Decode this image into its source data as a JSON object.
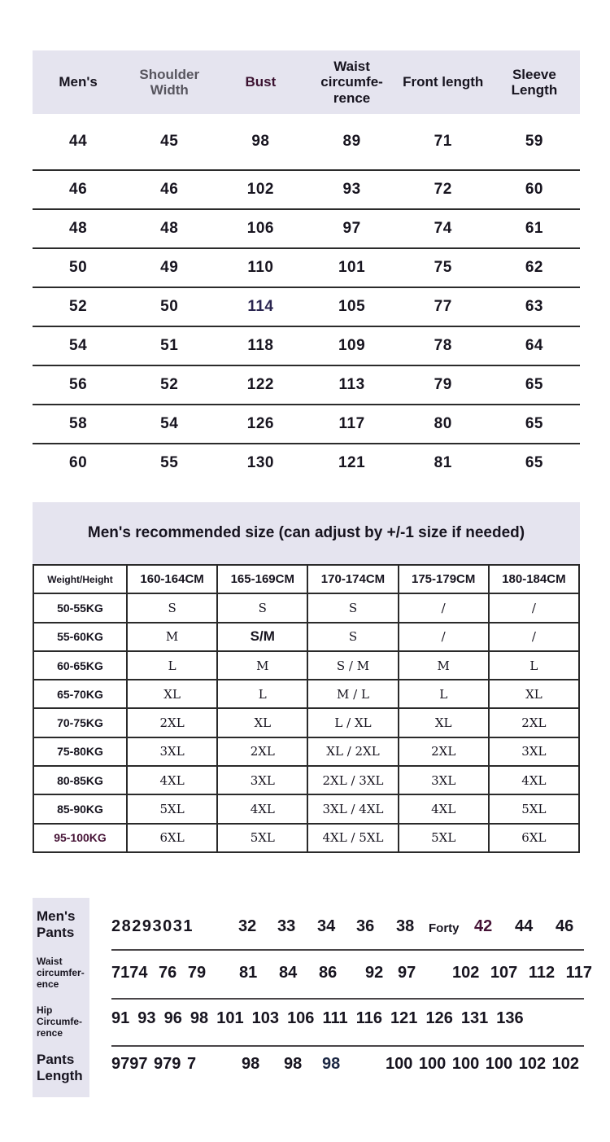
{
  "colors": {
    "band_lavender": "#e5e4ef",
    "text_dark": "#17141f",
    "header_gray": "#57555e",
    "header_plum": "#3b1230",
    "accent_navy": "#2a2550",
    "accent_maroon": "#451235",
    "table_border": "#2a2a2a"
  },
  "top_table": {
    "headers": [
      "Men's",
      "Shoulder\nWidth",
      "Bust",
      "Waist\ncircumfe-\nrence",
      "Front length",
      "Sleeve Length"
    ],
    "rows": [
      [
        "44",
        "45",
        "98",
        "89",
        "71",
        "59"
      ],
      [
        "46",
        "46",
        "102",
        "93",
        "72",
        "60"
      ],
      [
        "48",
        "48",
        "106",
        "97",
        "74",
        "61"
      ],
      [
        "50",
        "49",
        "110",
        "101",
        "75",
        "62"
      ],
      [
        "52",
        "50",
        "114",
        "105",
        "77",
        "63"
      ],
      [
        "54",
        "51",
        "118",
        "109",
        "78",
        "64"
      ],
      [
        "56",
        "52",
        "122",
        "113",
        "79",
        "65"
      ],
      [
        "58",
        "54",
        "126",
        "117",
        "80",
        "65"
      ],
      [
        "60",
        "55",
        "130",
        "121",
        "81",
        "65"
      ]
    ]
  },
  "recommend": {
    "title": "Men's recommended size (can adjust by +/-1 size if needed)",
    "headers": [
      "Weight/Height",
      "160-164CM",
      "165-169CM",
      "170-174CM",
      "175-179CM",
      "180-184CM"
    ],
    "rows": [
      [
        "50-55KG",
        "S",
        "S",
        "S",
        "/",
        "/"
      ],
      [
        "55-60KG",
        "M",
        "S/M",
        "S",
        "/",
        "/"
      ],
      [
        "60-65KG",
        "L",
        "M",
        "S / M",
        "M",
        "L"
      ],
      [
        "65-70KG",
        "XL",
        "L",
        "M / L",
        "L",
        "XL"
      ],
      [
        "70-75KG",
        "2XL",
        "XL",
        "L / XL",
        "XL",
        "2XL"
      ],
      [
        "75-80KG",
        "3XL",
        "2XL",
        "XL / 2XL",
        "2XL",
        "3XL"
      ],
      [
        "80-85KG",
        "4XL",
        "3XL",
        "2XL / 3XL",
        "3XL",
        "4XL"
      ],
      [
        "85-90KG",
        "5XL",
        "4XL",
        "3XL / 4XL",
        "4XL",
        "5XL"
      ],
      [
        "95-100KG",
        "6XL",
        "5XL",
        "4XL / 5XL",
        "5XL",
        "6XL"
      ]
    ]
  },
  "pants": {
    "rows": [
      {
        "label": "Men's\nPants",
        "tokens": [
          "28293031",
          "32",
          "33",
          "34",
          "36",
          "38",
          "Forty",
          "42",
          "44",
          "46"
        ]
      },
      {
        "label": "Waist\ncircumfer-\nence",
        "tokens": [
          "7174 76 79",
          "81",
          "84",
          "86",
          "92",
          "97",
          "102 107 112 117"
        ]
      },
      {
        "label": "Hip\nCircumfe-\nrence",
        "tokens": [
          "91 93 96 98 101 103 106 111 116 121 126 131 136"
        ]
      },
      {
        "label": "Pants\nLength",
        "tokens": [
          "9797 979 7",
          "98",
          "98",
          "98",
          "100 100 100 100 102 102"
        ]
      }
    ]
  }
}
